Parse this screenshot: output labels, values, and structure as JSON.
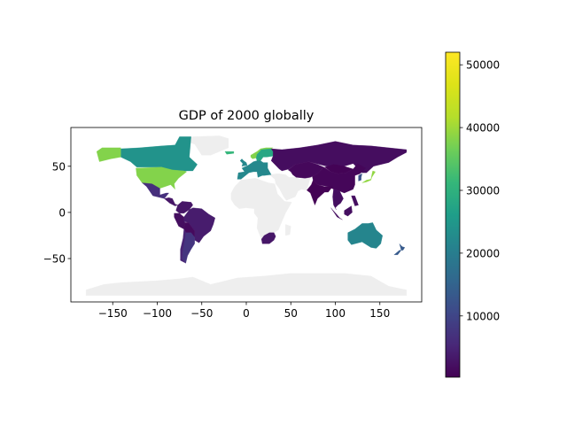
{
  "chart_data": {
    "type": "choropleth-map",
    "title": "GDP of 2000 globally",
    "xlim": [
      -197,
      197
    ],
    "ylim": [
      -97,
      92
    ],
    "x_ticks": [
      -150,
      -100,
      -50,
      0,
      50,
      100,
      150
    ],
    "y_ticks": [
      50,
      0,
      -50
    ],
    "x_tick_labels": [
      "−150",
      "−100",
      "−50",
      "0",
      "50",
      "100",
      "150"
    ],
    "y_tick_labels": [
      "50",
      "0",
      "−50"
    ],
    "colorbar": {
      "colormap": "viridis",
      "range": [
        240,
        52000
      ],
      "ticks": [
        10000,
        20000,
        30000,
        40000,
        50000
      ],
      "tick_labels": [
        "10000",
        "20000",
        "30000",
        "40000",
        "50000"
      ]
    },
    "missing_color": "#eeeeee",
    "regions": [
      {
        "name": "Canada",
        "value": 24000
      },
      {
        "name": "Alaska (USA)",
        "value": 38000
      },
      {
        "name": "United States",
        "value": 38000
      },
      {
        "name": "Mexico",
        "value": 6500
      },
      {
        "name": "Central America",
        "value": 3000
      },
      {
        "name": "Colombia/Venezuela",
        "value": 3000
      },
      {
        "name": "Peru/Ecuador",
        "value": 2000
      },
      {
        "name": "Brazil",
        "value": 3800
      },
      {
        "name": "Bolivia/Paraguay",
        "value": 1500
      },
      {
        "name": "Argentina",
        "value": 7500
      },
      {
        "name": "Chile",
        "value": 5000
      },
      {
        "name": "Greenland",
        "value": null
      },
      {
        "name": "Iceland",
        "value": 31000
      },
      {
        "name": "Norway",
        "value": 38000
      },
      {
        "name": "Sweden/Finland",
        "value": 28000
      },
      {
        "name": "Western Europe",
        "value": 22000
      },
      {
        "name": "Russia",
        "value": 1800
      },
      {
        "name": "Kazakhstan/Central Asia",
        "value": 1200
      },
      {
        "name": "Mongolia",
        "value": 500
      },
      {
        "name": "China",
        "value": 950
      },
      {
        "name": "India",
        "value": 450
      },
      {
        "name": "Southeast Asia",
        "value": 2000
      },
      {
        "name": "Japan",
        "value": 39000
      },
      {
        "name": "Korea",
        "value": 12000
      },
      {
        "name": "Australia",
        "value": 21500
      },
      {
        "name": "New Zealand",
        "value": 13500
      },
      {
        "name": "South Africa",
        "value": 3000
      },
      {
        "name": "Africa (rest)",
        "value": null
      },
      {
        "name": "Middle East",
        "value": null
      },
      {
        "name": "Antarctica",
        "value": null
      }
    ]
  }
}
